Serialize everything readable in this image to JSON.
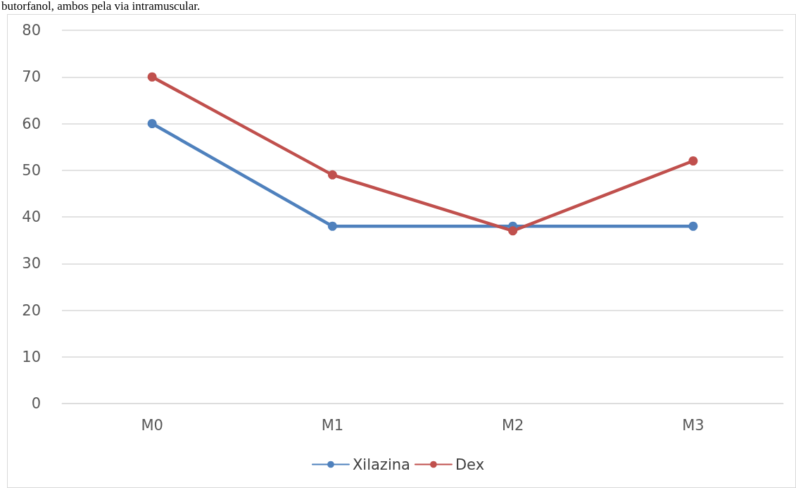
{
  "chart_data": {
    "type": "line",
    "annotations": [
      "butorfanol, ambos pela via intramuscular."
    ],
    "categories": [
      "M0",
      "M1",
      "M2",
      "M3"
    ],
    "series": [
      {
        "name": "Xilazina",
        "color": "#4f81bd",
        "values": [
          60,
          38,
          38,
          38
        ]
      },
      {
        "name": "Dex",
        "color": "#c0504d",
        "values": [
          70,
          49,
          37,
          52
        ]
      }
    ],
    "ylim": [
      0,
      80
    ],
    "yticks": [
      0,
      10,
      20,
      30,
      40,
      50,
      60,
      70,
      80
    ],
    "grid": "y",
    "legend": "bottom",
    "marker": "circle",
    "line_style": "solid"
  }
}
